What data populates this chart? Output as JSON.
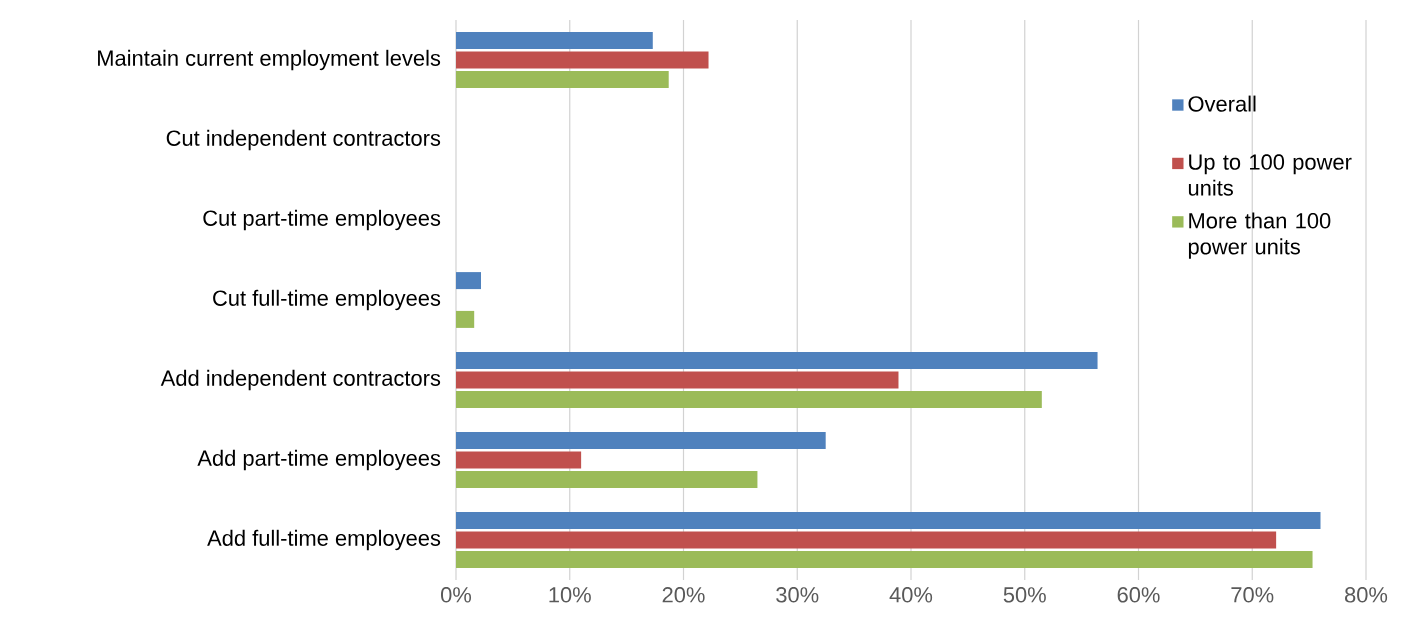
{
  "chart_data": {
    "type": "bar",
    "orientation": "horizontal",
    "categories": [
      "Maintain current employment levels",
      "Cut independent contractors",
      "Cut part-time employees",
      "Cut full-time employees",
      "Add independent contractors",
      "Add part-time employees",
      "Add full-time employees"
    ],
    "series": [
      {
        "name": "Overall",
        "color": "#4f81bd",
        "values": [
          17.3,
          null,
          null,
          2.2,
          56.4,
          32.5,
          76.0
        ]
      },
      {
        "name": "Up to 100 power units",
        "color": "#c0504d",
        "values": [
          22.2,
          null,
          null,
          null,
          38.9,
          11.0,
          72.1
        ]
      },
      {
        "name": "More than 100 power units",
        "color": "#9bbb59",
        "values": [
          18.7,
          null,
          null,
          1.6,
          51.5,
          26.5,
          75.3
        ]
      }
    ],
    "xlim": [
      0,
      80
    ],
    "xticks": [
      {
        "value": 0,
        "label": "0%"
      },
      {
        "value": 10,
        "label": "10%"
      },
      {
        "value": 20,
        "label": "20%"
      },
      {
        "value": 30,
        "label": "30%"
      },
      {
        "value": 40,
        "label": "40%"
      },
      {
        "value": 50,
        "label": "50%"
      },
      {
        "value": 60,
        "label": "60%"
      },
      {
        "value": 70,
        "label": "70%"
      },
      {
        "value": 80,
        "label": "80%"
      }
    ],
    "grid": "x",
    "legend": "right"
  }
}
